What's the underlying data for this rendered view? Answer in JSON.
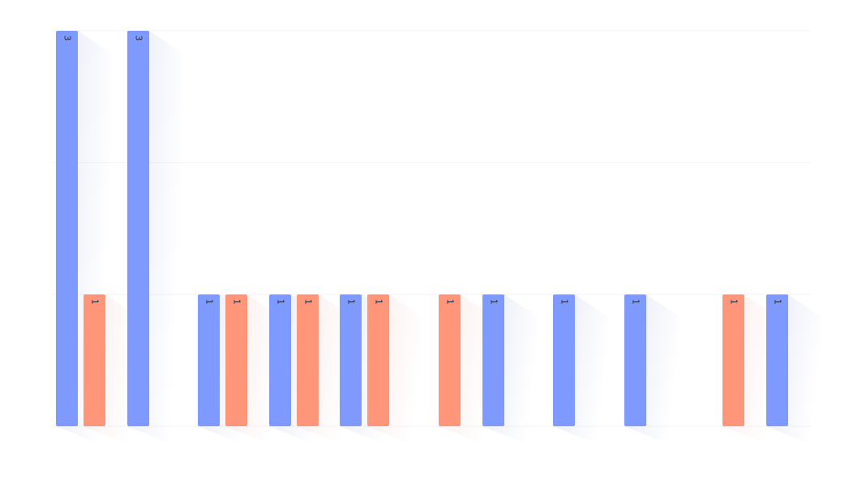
{
  "chart_data": {
    "type": "bar",
    "ylim": [
      0,
      3
    ],
    "grid": true,
    "legend": "none",
    "value_label_orientation": "rotated",
    "categories": [
      "",
      "",
      "",
      "",
      "",
      "",
      "",
      "",
      "",
      "",
      ""
    ],
    "series": [
      {
        "color": "#7f9aff",
        "values": [
          3,
          3,
          1,
          1,
          1,
          null,
          1,
          1,
          1,
          null,
          1
        ]
      },
      {
        "color": "#ff967a",
        "values": [
          1,
          null,
          1,
          1,
          1,
          1,
          null,
          null,
          null,
          1,
          null
        ]
      }
    ]
  }
}
